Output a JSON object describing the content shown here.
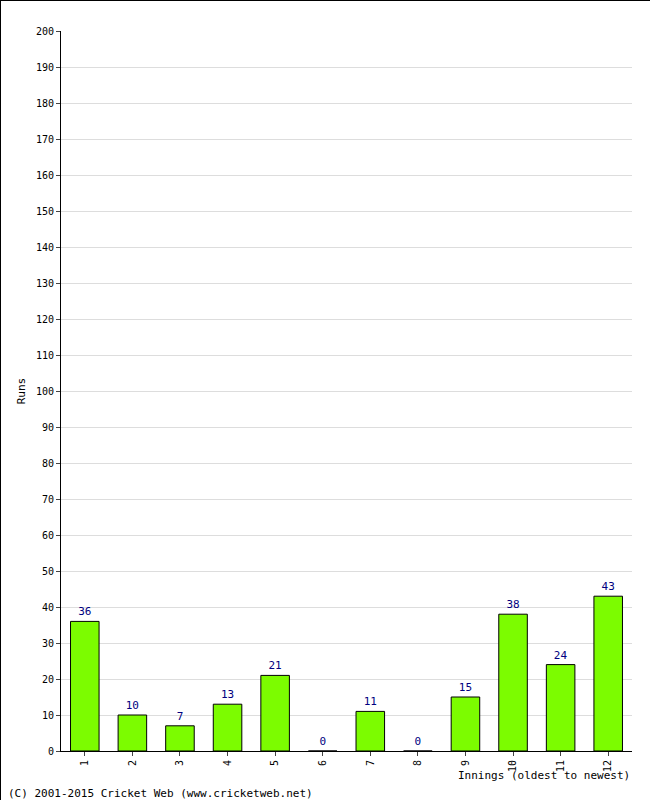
{
  "chart_data": {
    "type": "bar",
    "categories": [
      "1",
      "2",
      "3",
      "4",
      "5",
      "6",
      "7",
      "8",
      "9",
      "10",
      "11",
      "12"
    ],
    "values": [
      36,
      10,
      7,
      13,
      21,
      0,
      11,
      0,
      15,
      38,
      24,
      43
    ],
    "color": "#7cfc00",
    "ylabel": "Runs",
    "xlabel": "Innings (oldest to newest)",
    "annotations": [
      "(C) 2001-2015 Cricket Web (www.cricketweb.net)"
    ],
    "ylim": [
      0,
      200
    ],
    "yticks": [
      0,
      10,
      20,
      30,
      40,
      50,
      60,
      70,
      80,
      90,
      100,
      110,
      120,
      130,
      140,
      150,
      160,
      170,
      180,
      190,
      200
    ],
    "grid": true,
    "data_labels": true
  }
}
